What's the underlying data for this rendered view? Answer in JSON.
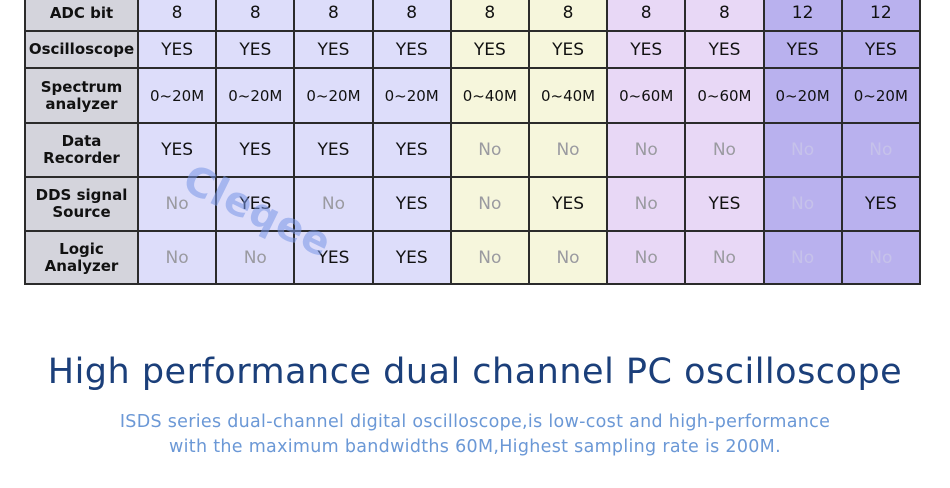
{
  "table": {
    "columns": 10,
    "column_colors": [
      "#ddddfa",
      "#ddddfa",
      "#ddddfa",
      "#ddddfa",
      "#f6f6dc",
      "#f6f6dc",
      "#e8d8f6",
      "#e8d8f6",
      "#b9b1ee",
      "#b9b1ee"
    ],
    "rows": [
      {
        "label": "ADC bit",
        "cells": [
          "8",
          "8",
          "8",
          "8",
          "8",
          "8",
          "8",
          "8",
          "12",
          "12"
        ]
      },
      {
        "label": "Oscilloscope",
        "cells": [
          "YES",
          "YES",
          "YES",
          "YES",
          "YES",
          "YES",
          "YES",
          "YES",
          "YES",
          "YES"
        ]
      },
      {
        "label": "Spectrum analyzer",
        "cells": [
          "0~20M",
          "0~20M",
          "0~20M",
          "0~20M",
          "0~40M",
          "0~40M",
          "0~60M",
          "0~60M",
          "0~20M",
          "0~20M"
        ]
      },
      {
        "label": "Data Recorder",
        "cells": [
          "YES",
          "YES",
          "YES",
          "YES",
          "No",
          "No",
          "No",
          "No",
          "No",
          "No"
        ]
      },
      {
        "label": "DDS signal Source",
        "cells": [
          "No",
          "YES",
          "No",
          "YES",
          "No",
          "YES",
          "No",
          "YES",
          "No",
          "YES"
        ]
      },
      {
        "label": "Logic Analyzer",
        "cells": [
          "No",
          "No",
          "YES",
          "YES",
          "No",
          "No",
          "No",
          "No",
          "No",
          "No"
        ]
      }
    ]
  },
  "watermark": "Cleqee",
  "headline": "High performance dual channel PC oscilloscope",
  "subtitle_line1": "ISDS series dual-channel digital oscilloscope,is low-cost and high-performance",
  "subtitle_line2": "with the maximum bandwidths 60M,Highest sampling rate is 200M."
}
